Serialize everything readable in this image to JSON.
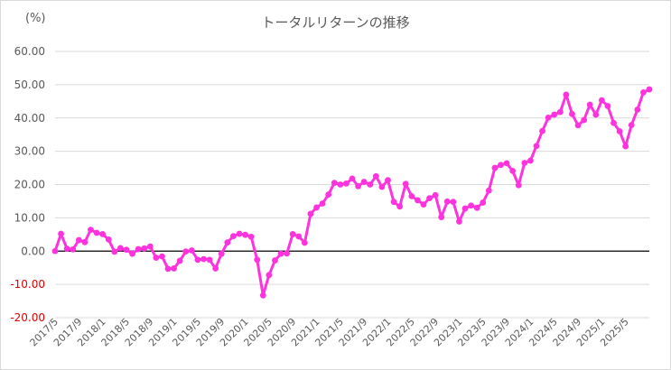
{
  "chart_data": {
    "type": "line",
    "title": "トータルリターンの推移",
    "unit_label": "(%)",
    "ylim": [
      -20,
      60
    ],
    "yticks": [
      60,
      50,
      40,
      30,
      20,
      10,
      0,
      -10,
      -20
    ],
    "ytick_labels": [
      "60.00",
      "50.00",
      "40.00",
      "30.00",
      "20.00",
      "10.00",
      "0.00",
      "-10.00",
      "-20.00"
    ],
    "xtick_labels": [
      "2017/5",
      "2017/9",
      "2018/1",
      "2018/5",
      "2018/9",
      "2019/1",
      "2019/5",
      "2019/9",
      "2020/1",
      "2020/5",
      "2020/9",
      "2021/1",
      "2021/5",
      "2021/9",
      "2022/1",
      "2022/5",
      "2022/9",
      "2023/1",
      "2023/5",
      "2023/9",
      "2024/1",
      "2024/5",
      "2024/9",
      "2025/1",
      "2025/5"
    ],
    "grid": true,
    "line_color": "#ff33dd",
    "negative_label_color": "#e00000",
    "series": [
      {
        "start": "2017/5",
        "values": [
          0.0,
          5.2,
          0.7,
          0.5,
          3.3,
          2.7,
          6.4,
          5.5,
          5.1,
          3.5,
          -0.2,
          0.9,
          0.4,
          -0.8,
          0.6,
          0.8,
          1.4,
          -2.0,
          -1.6,
          -5.3,
          -5.2,
          -2.9,
          -0.1,
          0.2,
          -2.6,
          -2.4,
          -2.6,
          -5.2,
          -0.8,
          2.6,
          4.5,
          5.2,
          4.9,
          4.3,
          -2.6,
          -13.3,
          -7.2,
          -2.8,
          -0.8,
          -0.7,
          5.1,
          4.4,
          2.5,
          11.2,
          13.1,
          14.3,
          17.0,
          20.5,
          20.0,
          20.3,
          21.8,
          19.5,
          20.8,
          20.0,
          22.5,
          19.3,
          21.3,
          14.8,
          13.4,
          20.2,
          16.5,
          15.3,
          14.0,
          15.9,
          16.8,
          10.2,
          14.9,
          14.8,
          8.9,
          12.8,
          13.7,
          13.0,
          14.6,
          18.2,
          25.0,
          25.9,
          26.4,
          24.1,
          19.8,
          26.5,
          27.2,
          31.6,
          36.1,
          40.1,
          41.0,
          41.8,
          47.0,
          41.2,
          37.8,
          39.4,
          44.0,
          41.0,
          45.3,
          43.6,
          38.5,
          36.0,
          31.5,
          37.9,
          42.5,
          47.7,
          48.6
        ]
      }
    ]
  }
}
